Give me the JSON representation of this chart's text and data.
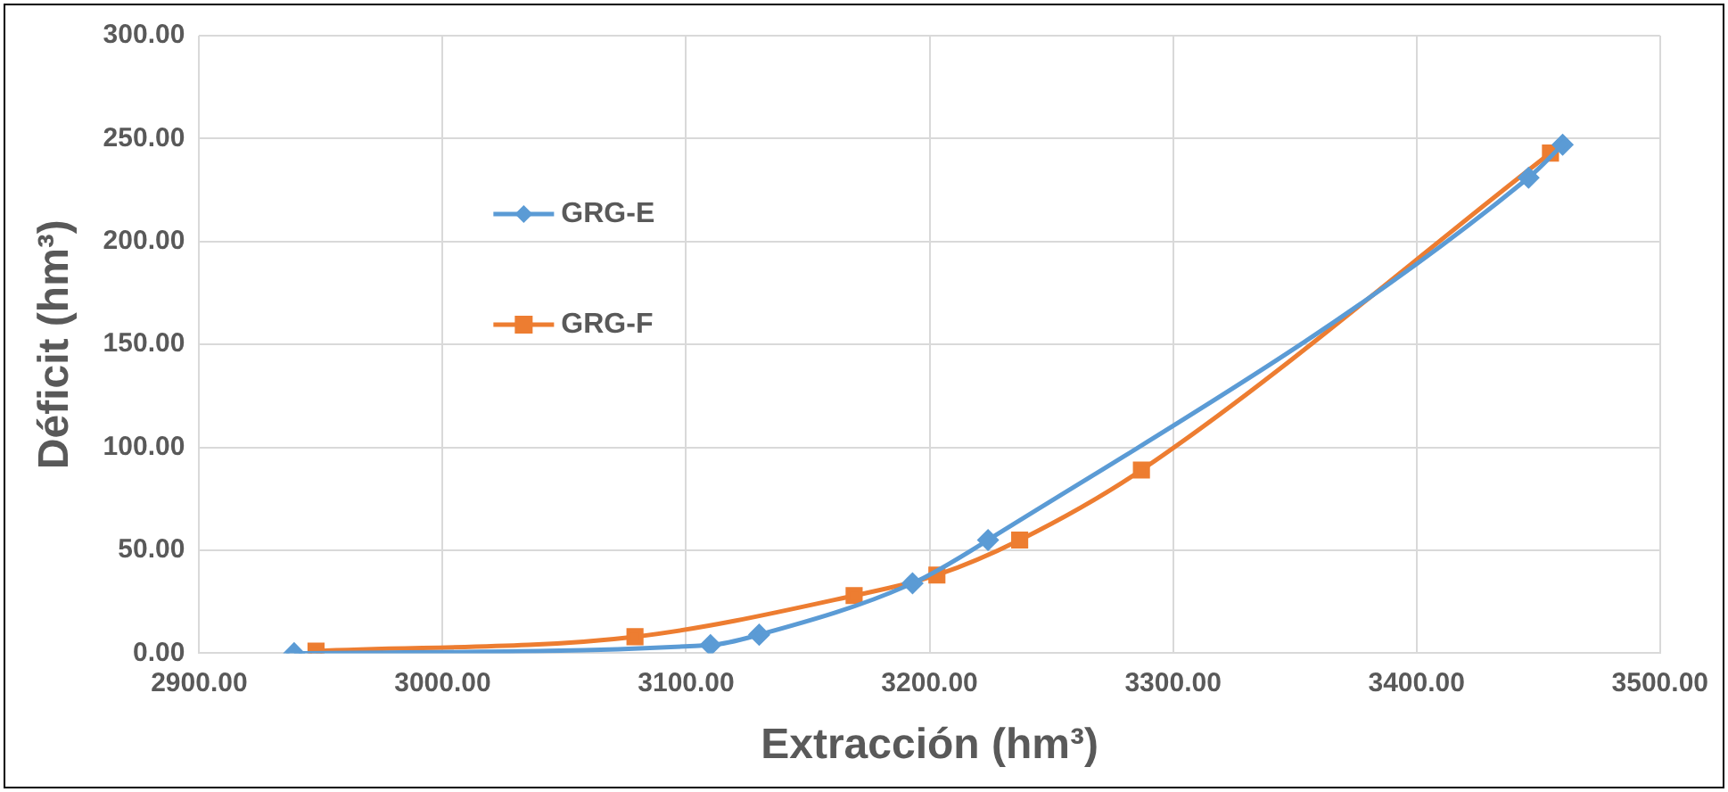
{
  "chart_data": {
    "type": "line",
    "xlabel": "Extracción (hm³)",
    "ylabel": "Déficit (hm³)",
    "xlim": [
      2900,
      3500
    ],
    "xticks": [
      {
        "value": 2900,
        "label": "2900.00"
      },
      {
        "value": 3000,
        "label": "3000.00"
      },
      {
        "value": 3100,
        "label": "3100.00"
      },
      {
        "value": 3200,
        "label": "3200.00"
      },
      {
        "value": 3300,
        "label": "3300.00"
      },
      {
        "value": 3400,
        "label": "3400.00"
      },
      {
        "value": 3500,
        "label": "3500.00"
      }
    ],
    "ylim": [
      0,
      300
    ],
    "yticks": [
      {
        "value": 0,
        "label": "0.00"
      },
      {
        "value": 50,
        "label": "50.00"
      },
      {
        "value": 100,
        "label": "100.00"
      },
      {
        "value": 150,
        "label": "150.00"
      },
      {
        "value": 200,
        "label": "200.00"
      },
      {
        "value": 250,
        "label": "250.00"
      },
      {
        "value": 300,
        "label": "300.00"
      }
    ],
    "grid": true,
    "legend": "top left",
    "line_style": "solid",
    "series": [
      {
        "name": "GRG-E",
        "color": "#5b9bd5",
        "marker": "diamond",
        "x": [
          2939,
          3110,
          3130,
          3193,
          3224,
          3446,
          3460
        ],
        "values": [
          0,
          4,
          9,
          34,
          55,
          231,
          247
        ]
      },
      {
        "name": "GRG-F",
        "color": "#ed7d31",
        "marker": "square",
        "x": [
          2948,
          3079,
          3169,
          3203,
          3237,
          3287,
          3455
        ],
        "values": [
          1,
          8,
          28,
          38,
          55,
          89,
          243
        ]
      }
    ]
  }
}
